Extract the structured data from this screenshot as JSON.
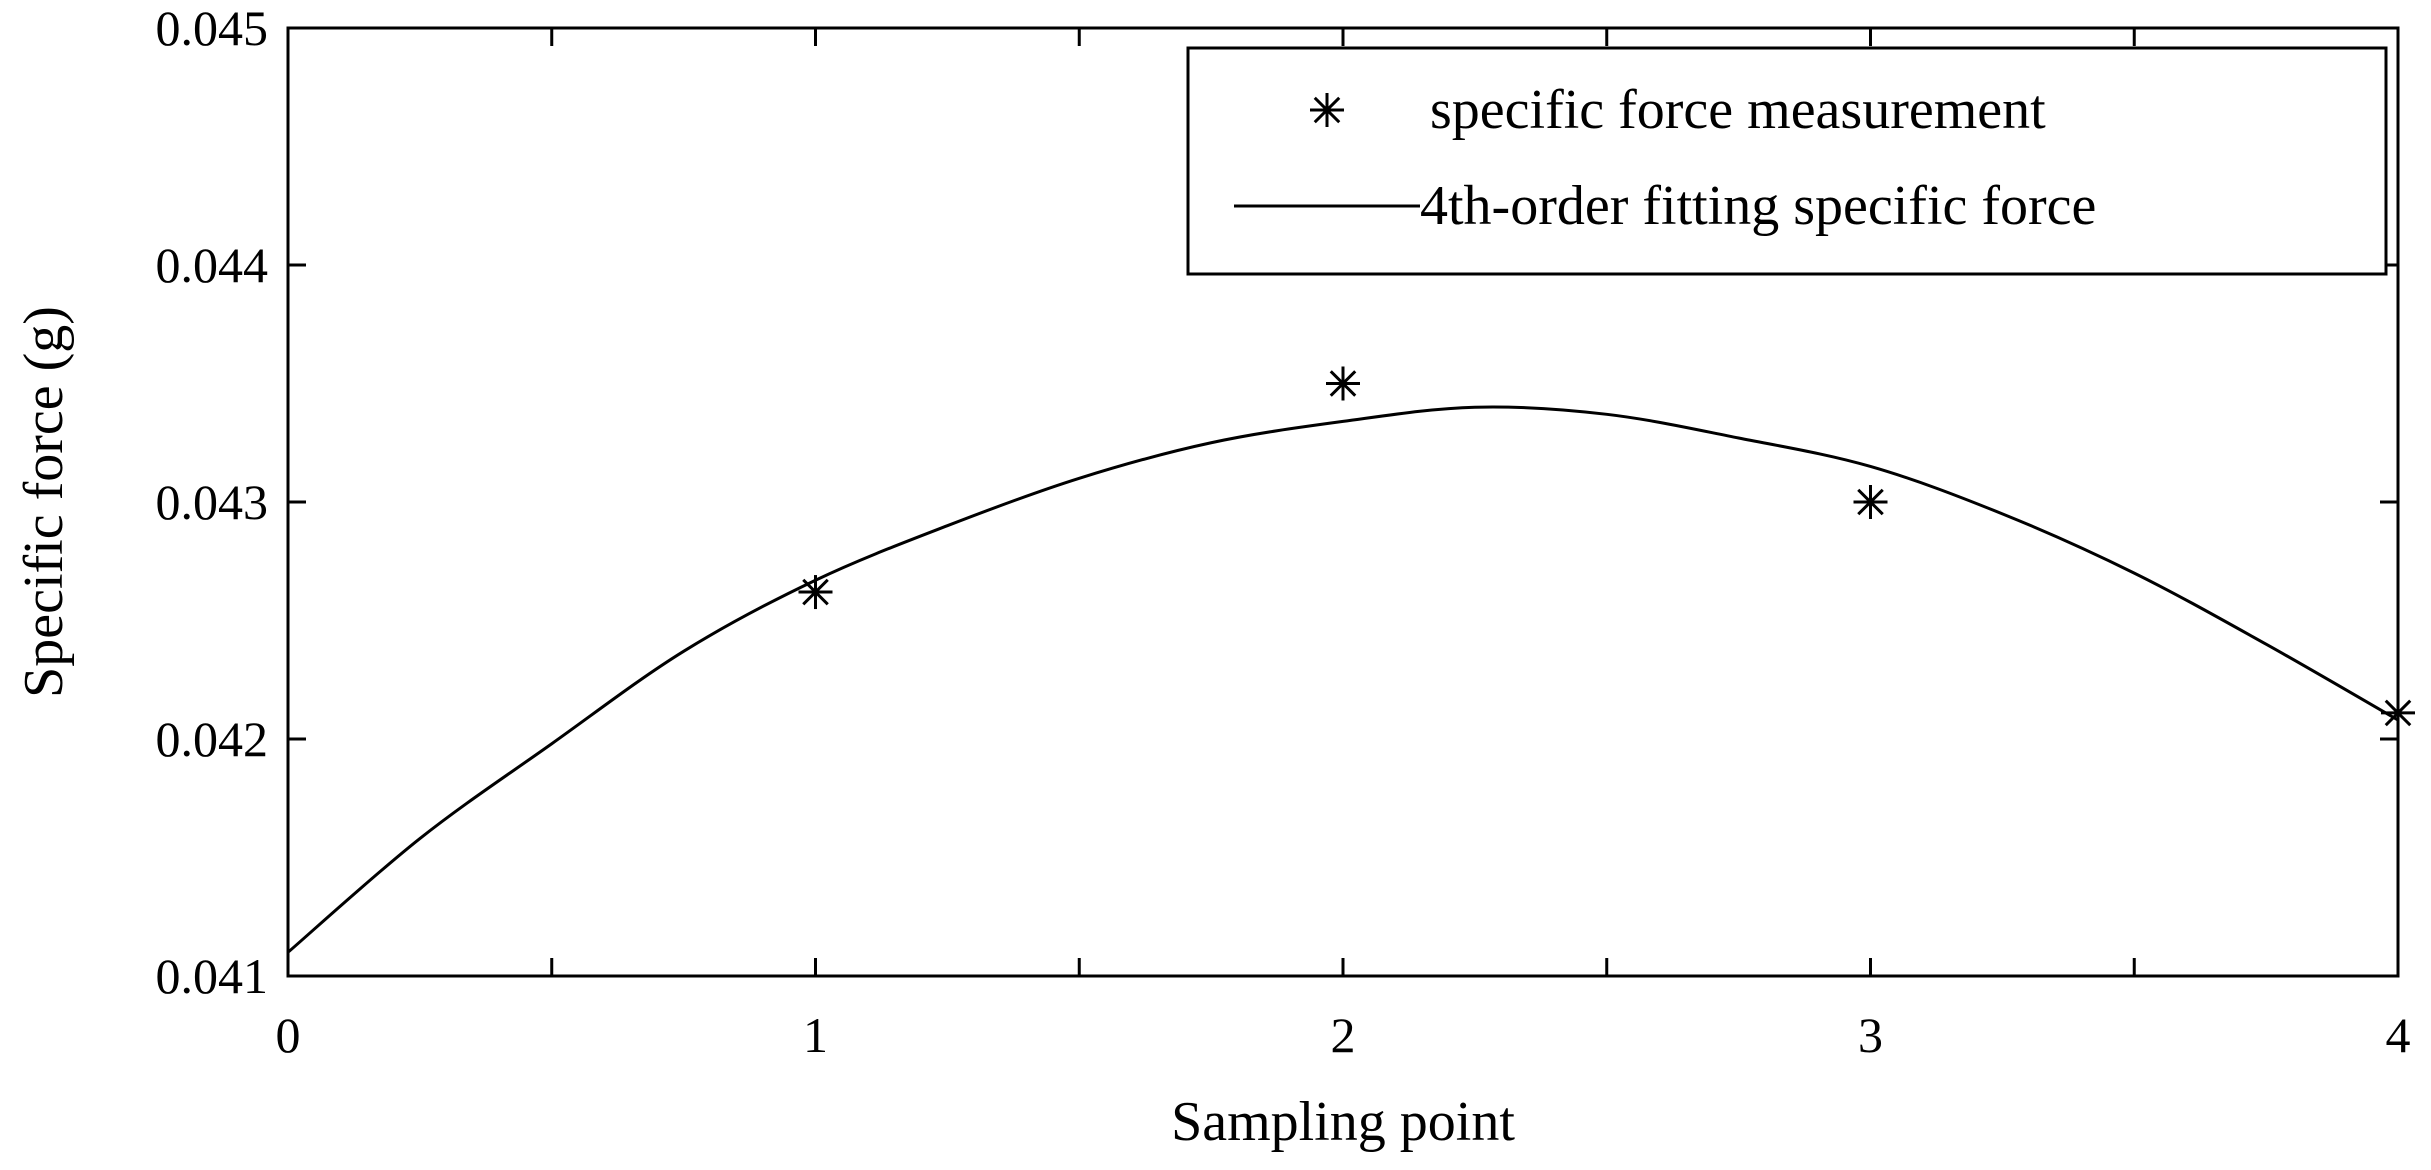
{
  "chart_data": {
    "type": "line",
    "title": "",
    "xlabel": "Sampling point",
    "ylabel": "Specific force (g)",
    "xlim": [
      0,
      4
    ],
    "ylim": [
      0.041,
      0.045
    ],
    "x_ticks": [
      0,
      0.5,
      1,
      1.5,
      2,
      2.5,
      3,
      3.5,
      4
    ],
    "x_tick_labels": [
      "0",
      "",
      "1",
      "",
      "2",
      "",
      "3",
      "",
      "4"
    ],
    "y_ticks": [
      0.041,
      0.042,
      0.043,
      0.044,
      0.045
    ],
    "y_tick_labels": [
      "0.041",
      "0.042",
      "0.043",
      "0.044",
      "0.045"
    ],
    "grid": false,
    "legend_position": "top-right",
    "series": [
      {
        "name": "specific force measurement",
        "kind": "scatter",
        "marker": "asterisk",
        "color": "#000000",
        "x": [
          1,
          2,
          3,
          4
        ],
        "y": [
          0.04262,
          0.0435,
          0.043,
          0.04211
        ]
      },
      {
        "name": "4th-order fitting specific force",
        "kind": "line",
        "color": "#000000",
        "x": [
          0,
          0.25,
          0.5,
          0.75,
          1,
          1.25,
          1.5,
          1.75,
          2,
          2.25,
          2.5,
          2.75,
          3,
          3.25,
          3.5,
          3.75,
          4
        ],
        "y": [
          0.0411,
          0.04158,
          0.04198,
          0.04237,
          0.04267,
          0.0429,
          0.0431,
          0.04325,
          0.04334,
          0.0434,
          0.04337,
          0.04327,
          0.04315,
          0.04295,
          0.0427,
          0.0424,
          0.04208
        ]
      }
    ]
  }
}
